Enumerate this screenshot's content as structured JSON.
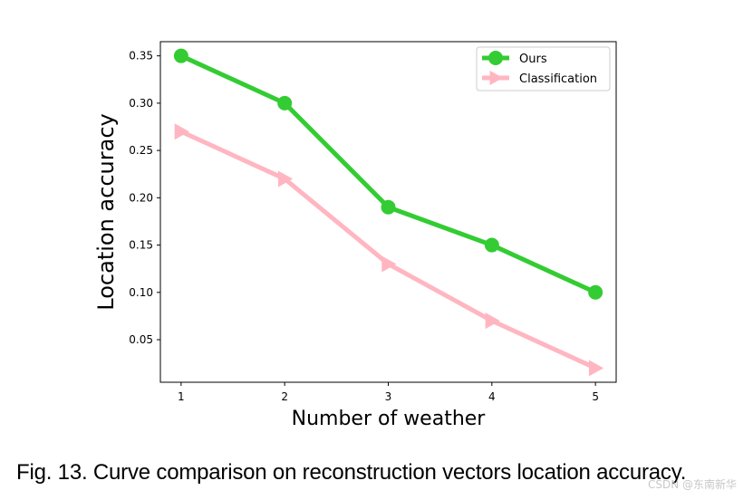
{
  "chart_data": {
    "type": "line",
    "x": [
      1,
      2,
      3,
      4,
      5
    ],
    "series": [
      {
        "name": "Ours",
        "values": [
          0.35,
          0.3,
          0.19,
          0.15,
          0.1
        ],
        "color": "#33cc33",
        "marker": "circle"
      },
      {
        "name": "Classification",
        "values": [
          0.27,
          0.22,
          0.13,
          0.07,
          0.02
        ],
        "color": "#ffb6c1",
        "marker": "triangle-right"
      }
    ],
    "xlabel": "Number of weather",
    "ylabel": "Location accuracy",
    "xlim": [
      0.8,
      5.2
    ],
    "ylim": [
      0.005,
      0.365
    ],
    "xticks": [
      "1",
      "2",
      "3",
      "4",
      "5"
    ],
    "yticks": [
      "0.05",
      "0.10",
      "0.15",
      "0.20",
      "0.25",
      "0.30",
      "0.35"
    ],
    "grid": false,
    "legend_position": "top-right"
  },
  "caption": "Fig. 13. Curve comparison on reconstruction vectors location accuracy.",
  "watermark": "CSDN @东南新华"
}
